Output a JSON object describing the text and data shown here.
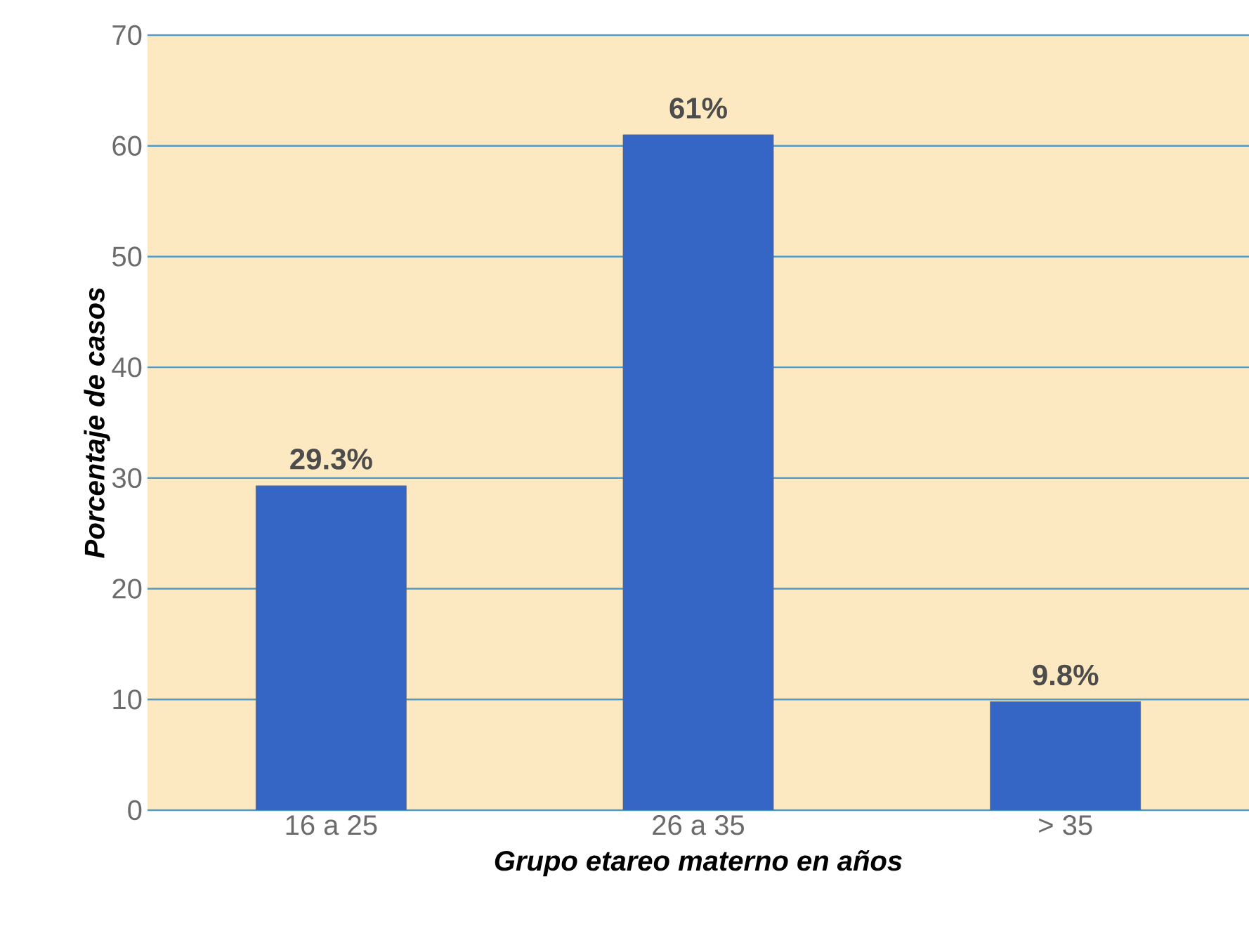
{
  "chart_data": {
    "type": "bar",
    "xlabel": "Grupo etareo materno en años",
    "ylabel": "Porcentaje de casos",
    "categories": [
      "16 a 25",
      "26 a 35",
      "> 35"
    ],
    "values": [
      29.3,
      61,
      9.8
    ],
    "value_labels": [
      "29.3%",
      "61%",
      "9.8%"
    ],
    "color": "#3566c6",
    "ylim": [
      0,
      70
    ],
    "yticks": [
      0,
      10,
      20,
      30,
      40,
      50,
      60,
      70
    ],
    "grid": "y"
  }
}
